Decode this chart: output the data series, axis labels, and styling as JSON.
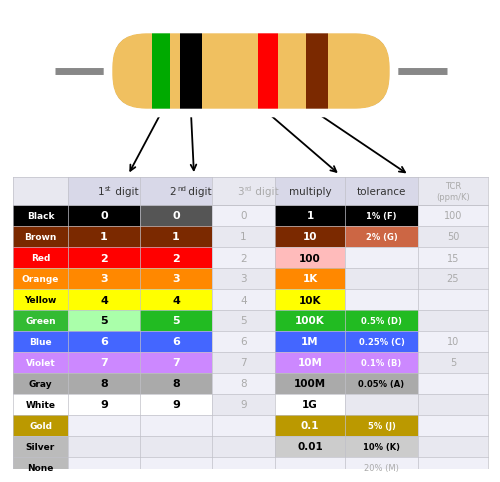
{
  "rows": [
    {
      "name": "Black",
      "name_bg": "#000000",
      "name_fg": "#ffffff",
      "d1": "0",
      "d1_bg": "#000000",
      "d1_fg": "#ffffff",
      "d2": "0",
      "d2_bg": "#555555",
      "d2_fg": "#ffffff",
      "d3": "0",
      "mult": "1",
      "mult_bg": "#000000",
      "mult_fg": "#ffffff",
      "tol": "1% (F)",
      "tol_bg": "#000000",
      "tol_fg": "#ffffff",
      "tcr": "100"
    },
    {
      "name": "Brown",
      "name_bg": "#7B2900",
      "name_fg": "#ffffff",
      "d1": "1",
      "d1_bg": "#7B2900",
      "d1_fg": "#ffffff",
      "d2": "1",
      "d2_bg": "#7B2900",
      "d2_fg": "#ffffff",
      "d3": "1",
      "mult": "10",
      "mult_bg": "#7B2900",
      "mult_fg": "#ffffff",
      "tol": "2% (G)",
      "tol_bg": "#cc6644",
      "tol_fg": "#ffffff",
      "tcr": "50"
    },
    {
      "name": "Red",
      "name_bg": "#ff0000",
      "name_fg": "#ffffff",
      "d1": "2",
      "d1_bg": "#ff0000",
      "d1_fg": "#ffffff",
      "d2": "2",
      "d2_bg": "#ff0000",
      "d2_fg": "#ffffff",
      "d3": "2",
      "mult": "100",
      "mult_bg": "#ffbbbb",
      "mult_fg": "#000000",
      "tol": "",
      "tol_bg": null,
      "tol_fg": null,
      "tcr": "15"
    },
    {
      "name": "Orange",
      "name_bg": "#ff8800",
      "name_fg": "#ffffff",
      "d1": "3",
      "d1_bg": "#ff8800",
      "d1_fg": "#ffffff",
      "d2": "3",
      "d2_bg": "#ff8800",
      "d2_fg": "#ffffff",
      "d3": "3",
      "mult": "1K",
      "mult_bg": "#ff8800",
      "mult_fg": "#ffffff",
      "tol": "",
      "tol_bg": null,
      "tol_fg": null,
      "tcr": "25"
    },
    {
      "name": "Yellow",
      "name_bg": "#ffff00",
      "name_fg": "#000000",
      "d1": "4",
      "d1_bg": "#ffff00",
      "d1_fg": "#000000",
      "d2": "4",
      "d2_bg": "#ffff00",
      "d2_fg": "#000000",
      "d3": "4",
      "mult": "10K",
      "mult_bg": "#ffff00",
      "mult_fg": "#000000",
      "tol": "",
      "tol_bg": null,
      "tol_fg": null,
      "tcr": ""
    },
    {
      "name": "Green",
      "name_bg": "#33bb33",
      "name_fg": "#ffffff",
      "d1": "5",
      "d1_bg": "#aaffaa",
      "d1_fg": "#000000",
      "d2": "5",
      "d2_bg": "#22bb22",
      "d2_fg": "#ffffff",
      "d3": "5",
      "mult": "100K",
      "mult_bg": "#22bb22",
      "mult_fg": "#ffffff",
      "tol": "0.5% (D)",
      "tol_bg": "#22bb22",
      "tol_fg": "#ffffff",
      "tcr": ""
    },
    {
      "name": "Blue",
      "name_bg": "#4466ff",
      "name_fg": "#ffffff",
      "d1": "6",
      "d1_bg": "#4466ff",
      "d1_fg": "#ffffff",
      "d2": "6",
      "d2_bg": "#4466ff",
      "d2_fg": "#ffffff",
      "d3": "6",
      "mult": "1M",
      "mult_bg": "#4466ff",
      "mult_fg": "#ffffff",
      "tol": "0.25% (C)",
      "tol_bg": "#4466ff",
      "tol_fg": "#ffffff",
      "tcr": "10"
    },
    {
      "name": "Violet",
      "name_bg": "#cc88ff",
      "name_fg": "#ffffff",
      "d1": "7",
      "d1_bg": "#cc88ff",
      "d1_fg": "#ffffff",
      "d2": "7",
      "d2_bg": "#cc88ff",
      "d2_fg": "#ffffff",
      "d3": "7",
      "mult": "10M",
      "mult_bg": "#cc88ff",
      "mult_fg": "#ffffff",
      "tol": "0.1% (B)",
      "tol_bg": "#cc88ff",
      "tol_fg": "#ffffff",
      "tcr": "5"
    },
    {
      "name": "Gray",
      "name_bg": "#aaaaaa",
      "name_fg": "#000000",
      "d1": "8",
      "d1_bg": "#aaaaaa",
      "d1_fg": "#000000",
      "d2": "8",
      "d2_bg": "#aaaaaa",
      "d2_fg": "#000000",
      "d3": "8",
      "mult": "100M",
      "mult_bg": "#aaaaaa",
      "mult_fg": "#000000",
      "tol": "0.05% (A)",
      "tol_bg": "#aaaaaa",
      "tol_fg": "#000000",
      "tcr": ""
    },
    {
      "name": "White",
      "name_bg": "#ffffff",
      "name_fg": "#000000",
      "d1": "9",
      "d1_bg": "#ffffff",
      "d1_fg": "#000000",
      "d2": "9",
      "d2_bg": "#ffffff",
      "d2_fg": "#000000",
      "d3": "9",
      "mult": "1G",
      "mult_bg": "#ffffff",
      "mult_fg": "#000000",
      "tol": "",
      "tol_bg": null,
      "tol_fg": null,
      "tcr": ""
    },
    {
      "name": "Gold",
      "name_bg": "#bb9900",
      "name_fg": "#ffffff",
      "d1": "",
      "d1_bg": null,
      "d1_fg": null,
      "d2": "",
      "d2_bg": null,
      "d2_fg": null,
      "d3": "",
      "mult": "0.1",
      "mult_bg": "#bb9900",
      "mult_fg": "#ffffff",
      "tol": "5% (J)",
      "tol_bg": "#bb9900",
      "tol_fg": "#ffffff",
      "tcr": ""
    },
    {
      "name": "Silver",
      "name_bg": "#bbbbbb",
      "name_fg": "#000000",
      "d1": "",
      "d1_bg": null,
      "d1_fg": null,
      "d2": "",
      "d2_bg": null,
      "d2_fg": null,
      "d3": "",
      "mult": "0.01",
      "mult_bg": "#cccccc",
      "mult_fg": "#000000",
      "tol": "10% (K)",
      "tol_bg": "#cccccc",
      "tol_fg": "#000000",
      "tcr": ""
    },
    {
      "name": "None",
      "name_bg": "#bbbbbb",
      "name_fg": "#000000",
      "d1": "",
      "d1_bg": null,
      "d1_fg": null,
      "d2": "",
      "d2_bg": null,
      "d2_fg": null,
      "d3": "",
      "mult": "",
      "mult_bg": null,
      "mult_fg": null,
      "tol": "20% (M)",
      "tol_bg": null,
      "tol_fg": "#aaaaaa",
      "tcr": ""
    }
  ],
  "resistor_body_color": "#f0c060",
  "resistor_outline_color": "#a08030",
  "resistor_lead_color": "#888888",
  "band_colors": [
    "#00aa00",
    "#000000",
    "#ff0000",
    "#7B2900"
  ],
  "table_bg": "#e8e8f0",
  "col_header_bg": "#d8d8e8",
  "row_alt1": "#f0f0f8",
  "row_alt2": "#e8e8f0"
}
